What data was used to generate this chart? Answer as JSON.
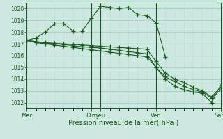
{
  "title": "",
  "xlabel": "Pression niveau de la mer( hPa )",
  "ylim": [
    1011.5,
    1020.5
  ],
  "yticks": [
    1012,
    1013,
    1014,
    1015,
    1016,
    1017,
    1018,
    1019,
    1020
  ],
  "bg_color": "#cce8e0",
  "line_color": "#1a5c1a",
  "grid_color_major": "#aaccc4",
  "grid_color_minor": "#c0ddd6",
  "xlabel_fontsize": 7,
  "ytick_fontsize": 5.5,
  "xtick_fontsize": 6,
  "xtick_labels": [
    "Mer",
    "Dim",
    "Jeu",
    "Ven",
    "Sam"
  ],
  "xtick_positions": [
    0,
    7,
    8,
    14,
    21
  ],
  "vline_positions": [
    0,
    7,
    8,
    14,
    21
  ],
  "xlim": [
    0,
    21
  ],
  "series": [
    {
      "x": [
        0,
        1,
        2,
        3,
        4,
        5,
        6,
        7,
        8,
        9,
        10,
        11,
        12,
        13,
        14,
        15
      ],
      "y": [
        1017.3,
        1017.5,
        1018.0,
        1018.7,
        1018.7,
        1018.1,
        1018.1,
        1019.2,
        1020.2,
        1020.1,
        1020.0,
        1020.1,
        1019.5,
        1019.4,
        1018.8,
        1015.9
      ]
    },
    {
      "x": [
        0,
        1,
        2,
        3,
        4,
        5,
        6,
        7,
        8,
        9,
        10,
        11,
        12,
        13,
        14,
        15,
        16,
        17,
        18,
        19,
        20,
        21
      ],
      "y": [
        1017.3,
        1017.15,
        1017.05,
        1017.0,
        1016.95,
        1016.85,
        1016.75,
        1016.7,
        1016.65,
        1016.55,
        1016.45,
        1016.35,
        1016.25,
        1016.15,
        1015.0,
        1014.0,
        1013.4,
        1013.1,
        1012.9,
        1012.8,
        1012.0,
        1013.5
      ]
    },
    {
      "x": [
        0,
        1,
        2,
        3,
        4,
        5,
        6,
        7,
        8,
        9,
        10,
        11,
        12,
        13,
        14,
        15,
        16,
        17,
        18,
        19,
        20,
        21
      ],
      "y": [
        1017.3,
        1017.1,
        1017.0,
        1016.9,
        1016.8,
        1016.7,
        1016.6,
        1016.5,
        1016.4,
        1016.3,
        1016.2,
        1016.1,
        1016.0,
        1015.9,
        1015.0,
        1014.2,
        1013.8,
        1013.4,
        1013.1,
        1012.9,
        1012.4,
        1013.1
      ]
    },
    {
      "x": [
        0,
        1,
        2,
        3,
        4,
        5,
        6,
        7,
        8,
        9,
        10,
        11,
        12,
        13,
        14,
        15,
        16,
        17,
        18,
        19,
        20,
        21
      ],
      "y": [
        1017.3,
        1017.2,
        1017.1,
        1017.05,
        1017.0,
        1016.95,
        1016.9,
        1016.85,
        1016.8,
        1016.75,
        1016.7,
        1016.65,
        1016.6,
        1016.55,
        1015.5,
        1014.5,
        1014.0,
        1013.7,
        1013.3,
        1013.0,
        1012.5,
        1013.3
      ]
    }
  ]
}
